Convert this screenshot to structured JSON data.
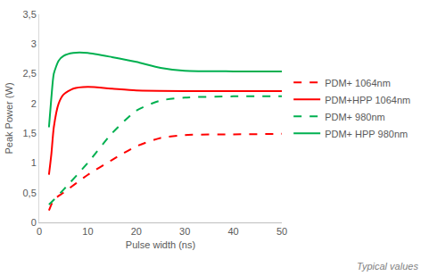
{
  "chart_data": {
    "type": "line",
    "x_label": "Pulse width (ns)",
    "y_label": "Peak Power (W)",
    "annotation": "Typical values",
    "xlim": [
      0,
      50
    ],
    "xticks": [
      0,
      10,
      20,
      30,
      40,
      50
    ],
    "ylim": [
      0,
      3.5
    ],
    "yticks": [
      0,
      {
        "value": 0.5,
        "label": "0,5"
      },
      1,
      {
        "value": 1.5,
        "label": "1,5"
      },
      2,
      {
        "value": 2.5,
        "label": "2,5"
      },
      3,
      {
        "value": 3.5,
        "label": "3,5"
      }
    ],
    "grid": false,
    "legend": "right",
    "series": [
      {
        "name": "PDM+ 1064nm",
        "color": "#ff0000",
        "line_style": "dashed",
        "x": [
          2,
          3,
          5,
          10,
          15,
          20,
          25,
          30,
          40,
          50
        ],
        "values": [
          0.2,
          0.38,
          0.5,
          0.8,
          1.05,
          1.28,
          1.42,
          1.47,
          1.48,
          1.49
        ]
      },
      {
        "name": "PDM+HPP 1064nm",
        "color": "#ff0000",
        "line_style": "solid",
        "x": [
          2,
          2.5,
          3,
          4,
          5,
          7,
          10,
          15,
          20,
          30,
          50
        ],
        "values": [
          0.8,
          1.15,
          1.6,
          2.0,
          2.15,
          2.25,
          2.28,
          2.25,
          2.22,
          2.21,
          2.21
        ]
      },
      {
        "name": "PDM+ 980nm",
        "color": "#00b050",
        "line_style": "dashed",
        "x": [
          2,
          3,
          5,
          10,
          15,
          20,
          25,
          30,
          40,
          50
        ],
        "values": [
          0.3,
          0.38,
          0.55,
          1.0,
          1.5,
          1.88,
          2.05,
          2.1,
          2.12,
          2.12
        ]
      },
      {
        "name": "PDM+ HPP 980nm",
        "color": "#00b050",
        "line_style": "solid",
        "x": [
          2,
          2.5,
          3,
          4,
          5,
          7,
          10,
          15,
          20,
          25,
          30,
          40,
          50
        ],
        "values": [
          1.6,
          2.1,
          2.5,
          2.72,
          2.8,
          2.85,
          2.85,
          2.78,
          2.7,
          2.6,
          2.55,
          2.54,
          2.54
        ]
      }
    ]
  }
}
